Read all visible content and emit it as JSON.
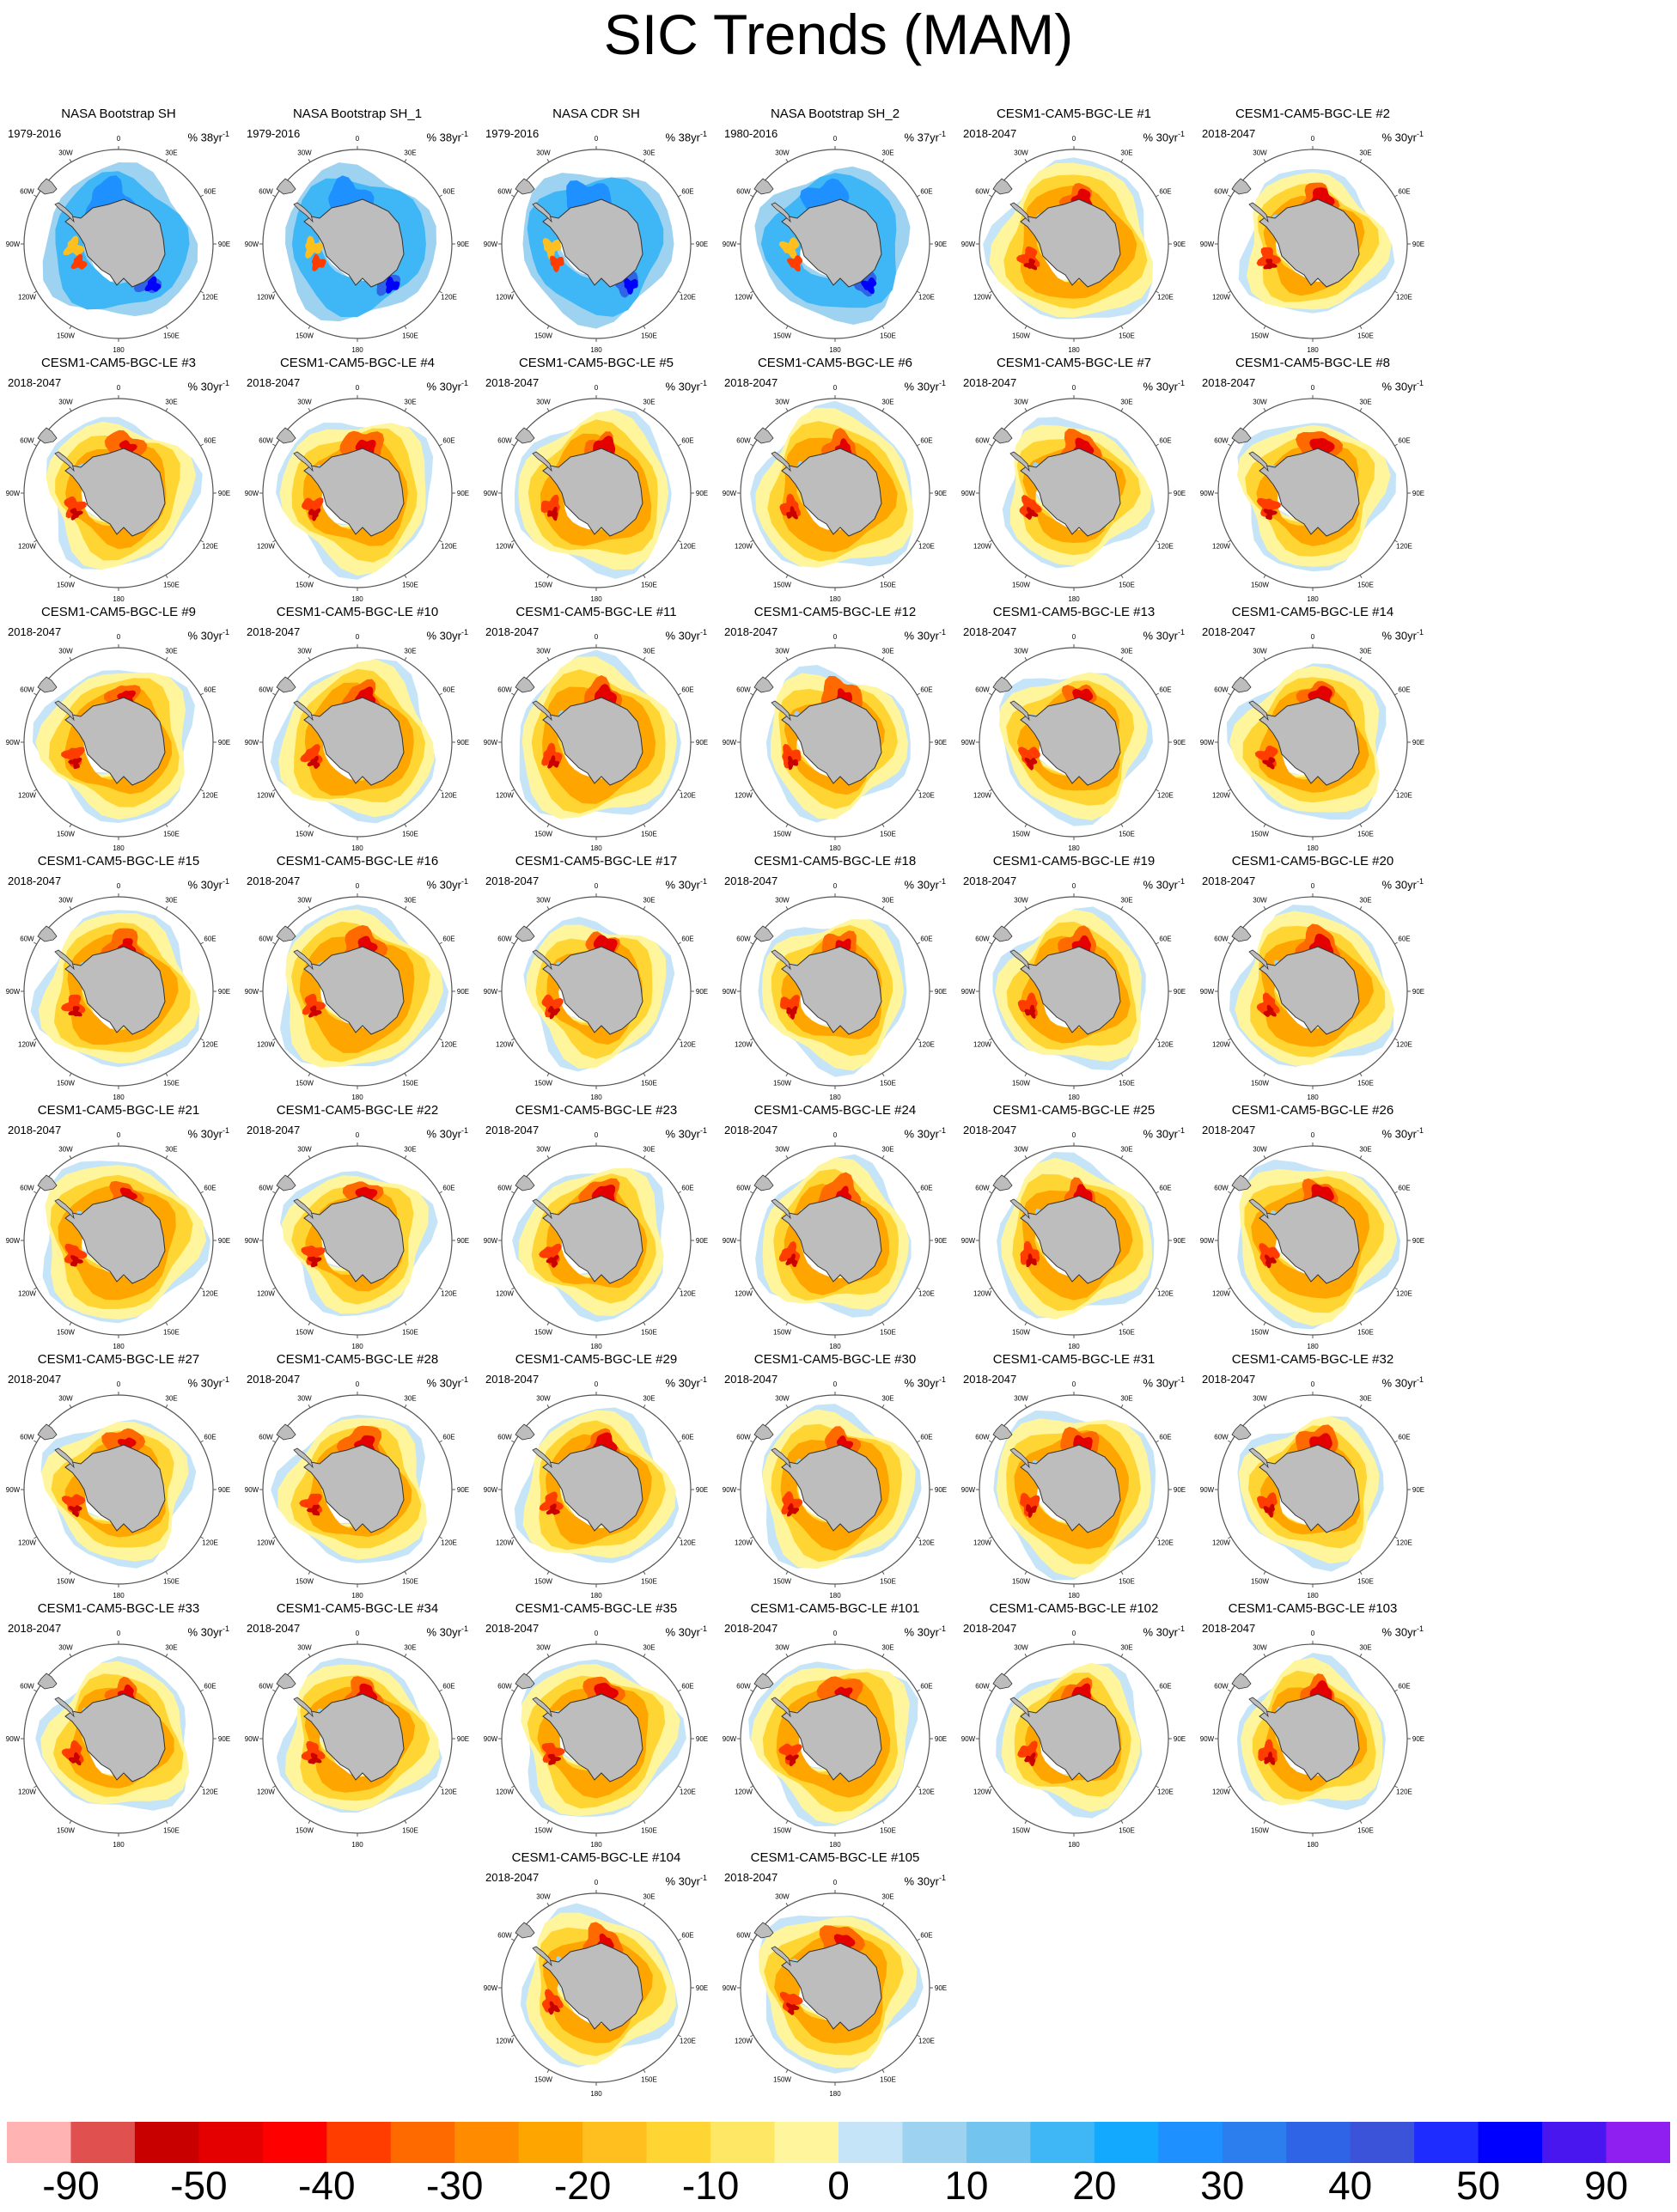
{
  "title": "SIC Trends (MAM)",
  "panels": [
    {
      "name": "NASA Bootstrap SH",
      "period": "1979-2016",
      "units_value": "% 38yr",
      "style": "obs"
    },
    {
      "name": "NASA Bootstrap SH_1",
      "period": "1979-2016",
      "units_value": "% 38yr",
      "style": "obs"
    },
    {
      "name": "NASA CDR SH",
      "period": "1979-2016",
      "units_value": "% 38yr",
      "style": "obs"
    },
    {
      "name": "NASA Bootstrap SH_2",
      "period": "1980-2016",
      "units_value": "% 37yr",
      "style": "obs"
    },
    {
      "name": "CESM1-CAM5-BGC-LE #1",
      "period": "2018-2047",
      "units_value": "% 30yr",
      "style": "model"
    },
    {
      "name": "CESM1-CAM5-BGC-LE #2",
      "period": "2018-2047",
      "units_value": "% 30yr",
      "style": "model"
    },
    {
      "name": "CESM1-CAM5-BGC-LE #3",
      "period": "2018-2047",
      "units_value": "% 30yr",
      "style": "model"
    },
    {
      "name": "CESM1-CAM5-BGC-LE #4",
      "period": "2018-2047",
      "units_value": "% 30yr",
      "style": "model"
    },
    {
      "name": "CESM1-CAM5-BGC-LE #5",
      "period": "2018-2047",
      "units_value": "% 30yr",
      "style": "model"
    },
    {
      "name": "CESM1-CAM5-BGC-LE #6",
      "period": "2018-2047",
      "units_value": "% 30yr",
      "style": "model"
    },
    {
      "name": "CESM1-CAM5-BGC-LE #7",
      "period": "2018-2047",
      "units_value": "% 30yr",
      "style": "model"
    },
    {
      "name": "CESM1-CAM5-BGC-LE #8",
      "period": "2018-2047",
      "units_value": "% 30yr",
      "style": "model"
    },
    {
      "name": "CESM1-CAM5-BGC-LE #9",
      "period": "2018-2047",
      "units_value": "% 30yr",
      "style": "model"
    },
    {
      "name": "CESM1-CAM5-BGC-LE #10",
      "period": "2018-2047",
      "units_value": "% 30yr",
      "style": "model"
    },
    {
      "name": "CESM1-CAM5-BGC-LE #11",
      "period": "2018-2047",
      "units_value": "% 30yr",
      "style": "model"
    },
    {
      "name": "CESM1-CAM5-BGC-LE #12",
      "period": "2018-2047",
      "units_value": "% 30yr",
      "style": "model"
    },
    {
      "name": "CESM1-CAM5-BGC-LE #13",
      "period": "2018-2047",
      "units_value": "% 30yr",
      "style": "model"
    },
    {
      "name": "CESM1-CAM5-BGC-LE #14",
      "period": "2018-2047",
      "units_value": "% 30yr",
      "style": "model"
    },
    {
      "name": "CESM1-CAM5-BGC-LE #15",
      "period": "2018-2047",
      "units_value": "% 30yr",
      "style": "model"
    },
    {
      "name": "CESM1-CAM5-BGC-LE #16",
      "period": "2018-2047",
      "units_value": "% 30yr",
      "style": "model"
    },
    {
      "name": "CESM1-CAM5-BGC-LE #17",
      "period": "2018-2047",
      "units_value": "% 30yr",
      "style": "model"
    },
    {
      "name": "CESM1-CAM5-BGC-LE #18",
      "period": "2018-2047",
      "units_value": "% 30yr",
      "style": "model"
    },
    {
      "name": "CESM1-CAM5-BGC-LE #19",
      "period": "2018-2047",
      "units_value": "% 30yr",
      "style": "model"
    },
    {
      "name": "CESM1-CAM5-BGC-LE #20",
      "period": "2018-2047",
      "units_value": "% 30yr",
      "style": "model"
    },
    {
      "name": "CESM1-CAM5-BGC-LE #21",
      "period": "2018-2047",
      "units_value": "% 30yr",
      "style": "model"
    },
    {
      "name": "CESM1-CAM5-BGC-LE #22",
      "period": "2018-2047",
      "units_value": "% 30yr",
      "style": "model"
    },
    {
      "name": "CESM1-CAM5-BGC-LE #23",
      "period": "2018-2047",
      "units_value": "% 30yr",
      "style": "model"
    },
    {
      "name": "CESM1-CAM5-BGC-LE #24",
      "period": "2018-2047",
      "units_value": "% 30yr",
      "style": "model"
    },
    {
      "name": "CESM1-CAM5-BGC-LE #25",
      "period": "2018-2047",
      "units_value": "% 30yr",
      "style": "model"
    },
    {
      "name": "CESM1-CAM5-BGC-LE #26",
      "period": "2018-2047",
      "units_value": "% 30yr",
      "style": "model"
    },
    {
      "name": "CESM1-CAM5-BGC-LE #27",
      "period": "2018-2047",
      "units_value": "% 30yr",
      "style": "model"
    },
    {
      "name": "CESM1-CAM5-BGC-LE #28",
      "period": "2018-2047",
      "units_value": "% 30yr",
      "style": "model"
    },
    {
      "name": "CESM1-CAM5-BGC-LE #29",
      "period": "2018-2047",
      "units_value": "% 30yr",
      "style": "model"
    },
    {
      "name": "CESM1-CAM5-BGC-LE #30",
      "period": "2018-2047",
      "units_value": "% 30yr",
      "style": "model"
    },
    {
      "name": "CESM1-CAM5-BGC-LE #31",
      "period": "2018-2047",
      "units_value": "% 30yr",
      "style": "model"
    },
    {
      "name": "CESM1-CAM5-BGC-LE #32",
      "period": "2018-2047",
      "units_value": "% 30yr",
      "style": "model"
    },
    {
      "name": "CESM1-CAM5-BGC-LE #33",
      "period": "2018-2047",
      "units_value": "% 30yr",
      "style": "model"
    },
    {
      "name": "CESM1-CAM5-BGC-LE #34",
      "period": "2018-2047",
      "units_value": "% 30yr",
      "style": "model"
    },
    {
      "name": "CESM1-CAM5-BGC-LE #35",
      "period": "2018-2047",
      "units_value": "% 30yr",
      "style": "model"
    },
    {
      "name": "CESM1-CAM5-BGC-LE #101",
      "period": "2018-2047",
      "units_value": "% 30yr",
      "style": "model"
    },
    {
      "name": "CESM1-CAM5-BGC-LE #102",
      "period": "2018-2047",
      "units_value": "% 30yr",
      "style": "model"
    },
    {
      "name": "CESM1-CAM5-BGC-LE #103",
      "period": "2018-2047",
      "units_value": "% 30yr",
      "style": "model"
    },
    {
      "name": "CESM1-CAM5-BGC-LE #104",
      "period": "2018-2047",
      "units_value": "% 30yr",
      "style": "model"
    },
    {
      "name": "CESM1-CAM5-BGC-LE #105",
      "period": "2018-2047",
      "units_value": "% 30yr",
      "style": "model"
    }
  ],
  "units_exponent": "-1",
  "longitude_labels": [
    "0",
    "30E",
    "60E",
    "90E",
    "120E",
    "150E",
    "180",
    "150W",
    "120W",
    "90W",
    "60W",
    "30W"
  ],
  "colors": {
    "land": "#bdbdbd",
    "coast": "#333333",
    "ring": "#555555"
  },
  "chart_data": {
    "type": "heatmap",
    "title": "SIC Trends (MAM)",
    "projection": "south polar stereographic",
    "colorbar": {
      "orientation": "horizontal",
      "tick_labels": [
        "-90",
        "-50",
        "-40",
        "-30",
        "-20",
        "-10",
        "0",
        "10",
        "20",
        "30",
        "40",
        "50",
        "90"
      ],
      "colors": [
        "#ffb3b3",
        "#e0504f",
        "#c80000",
        "#e40000",
        "#ff0000",
        "#ff3d00",
        "#ff6a00",
        "#ff8c00",
        "#ffa500",
        "#ffbf1f",
        "#ffd533",
        "#ffe766",
        "#fff59d",
        "#c5e4f7",
        "#9dd3f0",
        "#74c4f0",
        "#3fb6f5",
        "#12a9ff",
        "#1e90ff",
        "#2c7eee",
        "#2f64e6",
        "#3a53d8",
        "#1e2cff",
        "#0000ff",
        "#4a16f0",
        "#8e1ff0"
      ]
    }
  }
}
